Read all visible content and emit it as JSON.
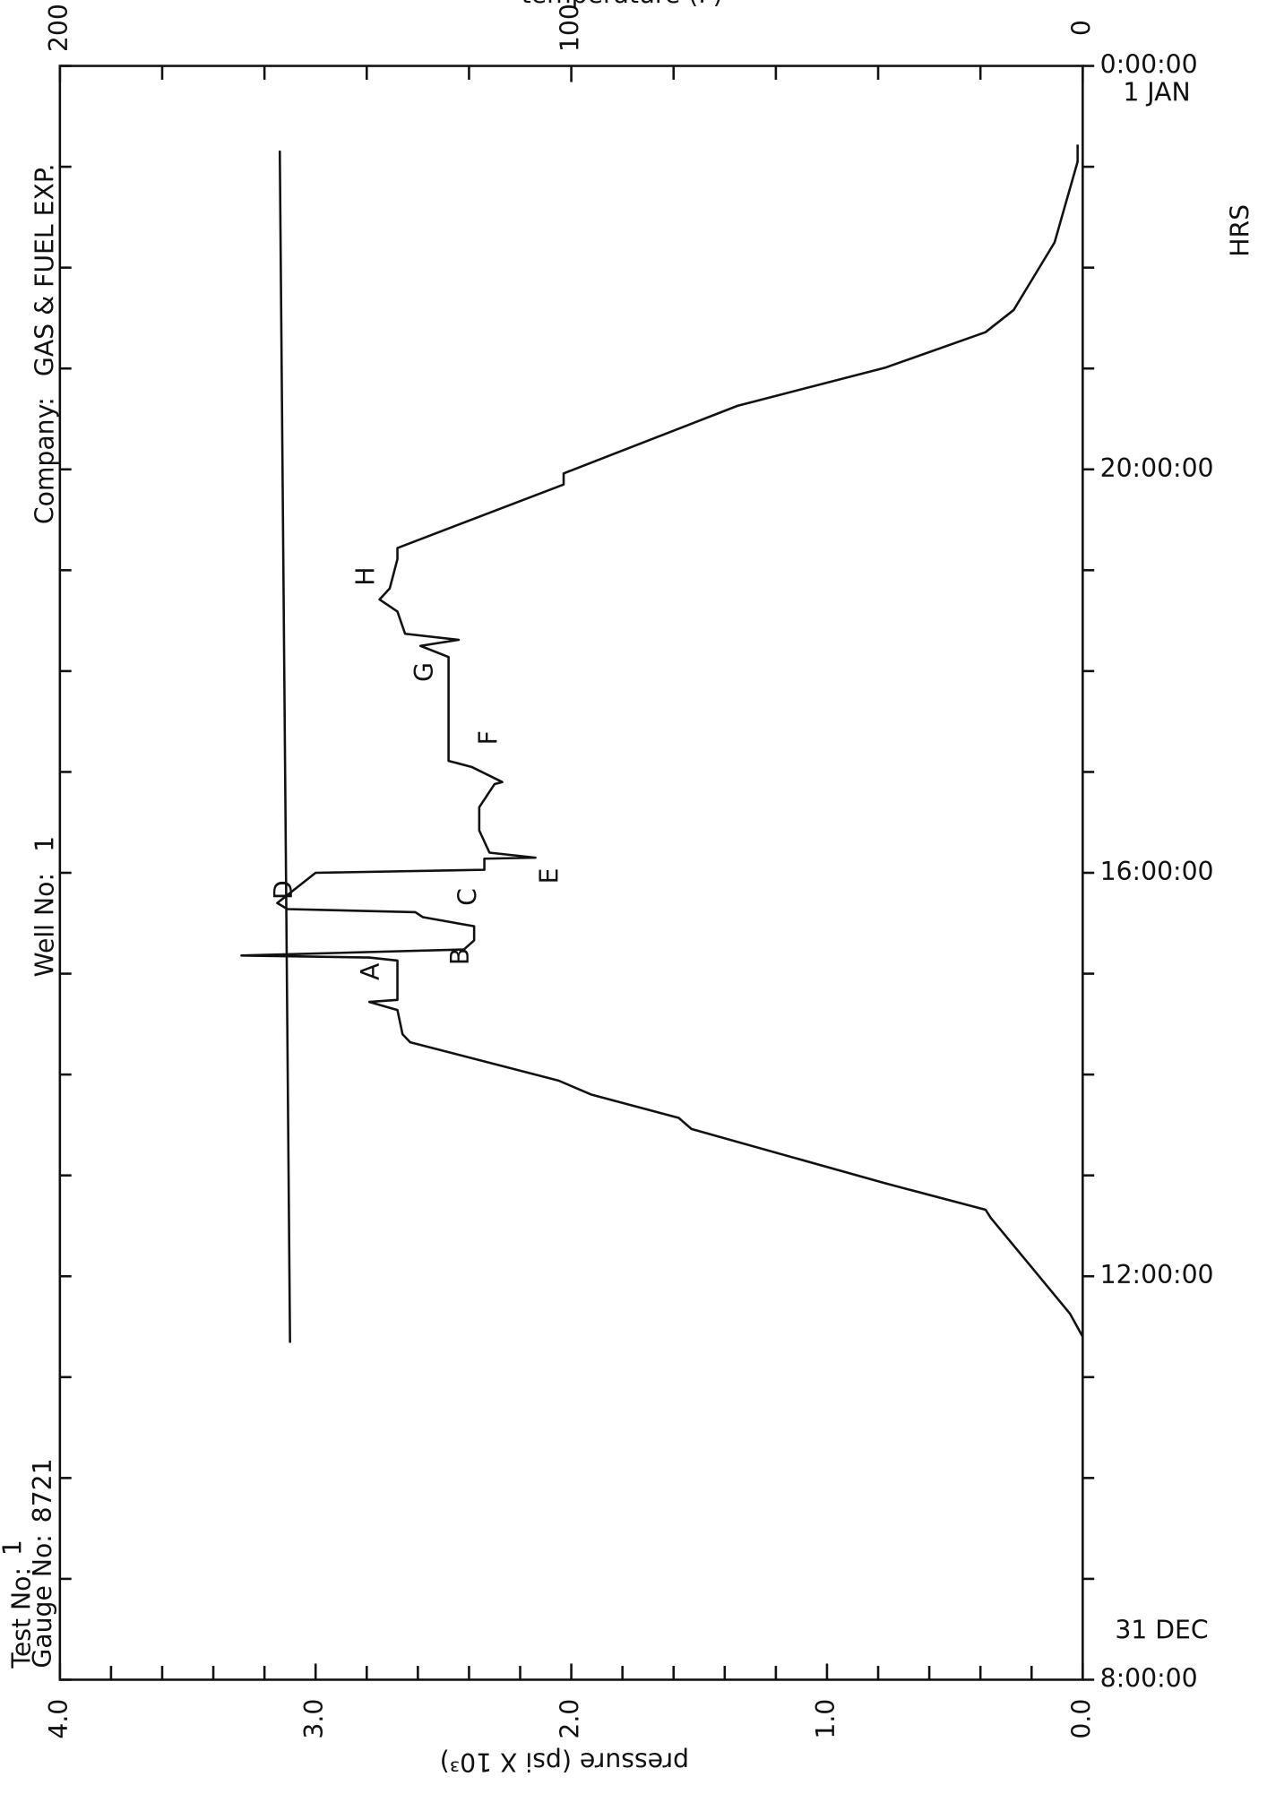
{
  "chart_data": {
    "type": "line",
    "header": {
      "company_label": "Company:",
      "company": "GAS & FUEL EXP.",
      "well_label": "Well No:",
      "well": "1",
      "test_label": "Test No:",
      "test": "1",
      "gauge_label": "Gauge No:",
      "gauge": "8721"
    },
    "x_label": "HRS",
    "y_label": "pressure (psi X 10³)",
    "y2_label": "temperature (F)",
    "xlim": [
      0,
      16
    ],
    "xticks": [
      {
        "value": 0,
        "label": "8:00:00"
      },
      {
        "value": 4,
        "label": "12:00:00"
      },
      {
        "value": 8,
        "label": "16:00:00"
      },
      {
        "value": 12,
        "label": "20:00:00"
      },
      {
        "value": 16,
        "label": "0:00:00"
      }
    ],
    "xminor_ticks": [
      0,
      1,
      2,
      3,
      4,
      5,
      6,
      7,
      8,
      9,
      10,
      11,
      12,
      13,
      14,
      15,
      16
    ],
    "date_labels": [
      {
        "value": 0,
        "label": "31 DEC"
      },
      {
        "value": 16,
        "label": "1 JAN"
      }
    ],
    "ylim": [
      0,
      4
    ],
    "yticks": [
      {
        "value": 4,
        "label": "4.0"
      },
      {
        "value": 3,
        "label": "3.0"
      },
      {
        "value": 2,
        "label": "2.0"
      },
      {
        "value": 1,
        "label": "1.0"
      },
      {
        "value": 0,
        "label": "0.0"
      }
    ],
    "yminor_ticks": [
      0.2,
      0.4,
      0.6,
      0.8,
      1.2,
      1.4,
      1.6,
      1.8,
      2.2,
      2.4,
      2.6,
      2.8,
      3.2,
      3.4,
      3.6,
      3.8
    ],
    "y2lim": [
      0,
      200
    ],
    "y2ticks": [
      200,
      100,
      0
    ],
    "y2minor_ticks": [
      20,
      40,
      60,
      80,
      120,
      140,
      160,
      180
    ],
    "series": [
      {
        "color": "#111111",
        "x": [
          3.4,
          3.63,
          4.58,
          4.66,
          4.92,
          5.46,
          5.57,
          5.8,
          5.94,
          6.32,
          6.4,
          6.64,
          6.72,
          6.74,
          7.13,
          7.16,
          7.18,
          7.24,
          7.33,
          7.47,
          7.56,
          7.61,
          7.64,
          7.7,
          7.82,
          8.0,
          8.03,
          8.14,
          8.15,
          8.2,
          8.42,
          8.65,
          8.88,
          8.9,
          9.05,
          9.11,
          10.14,
          10.25,
          10.31,
          10.37,
          10.59,
          10.71,
          10.82,
          11.11,
          11.22,
          11.85,
          11.96,
          12.63,
          13.01,
          13.36,
          13.58,
          14.25,
          15.05,
          15.22
        ],
        "values": [
          0.0,
          0.05,
          0.36,
          0.38,
          0.77,
          1.53,
          1.58,
          1.92,
          2.05,
          2.63,
          2.66,
          2.68,
          2.79,
          2.68,
          2.68,
          2.79,
          3.29,
          2.42,
          2.38,
          2.38,
          2.58,
          2.61,
          3.11,
          3.15,
          3.09,
          3.0,
          2.34,
          2.34,
          2.14,
          2.32,
          2.36,
          2.36,
          2.3,
          2.27,
          2.39,
          2.48,
          2.48,
          2.59,
          2.44,
          2.65,
          2.68,
          2.75,
          2.71,
          2.68,
          2.68,
          2.03,
          2.03,
          1.35,
          0.77,
          0.38,
          0.27,
          0.11,
          0.02,
          0.02
        ]
      },
      {
        "color": "#111111",
        "axis": "y2",
        "x": [
          3.34,
          15.16
        ],
        "values": [
          155,
          157
        ]
      }
    ],
    "annotations": [
      {
        "text": "A",
        "x": 7.02,
        "y": 2.78
      },
      {
        "text": "B",
        "x": 7.17,
        "y": 2.43
      },
      {
        "text": "C",
        "x": 7.76,
        "y": 2.4
      },
      {
        "text": "D",
        "x": 7.83,
        "y": 3.12
      },
      {
        "text": "E",
        "x": 7.97,
        "y": 2.08
      },
      {
        "text": "F",
        "x": 9.34,
        "y": 2.32
      },
      {
        "text": "G",
        "x": 9.99,
        "y": 2.57
      },
      {
        "text": "H",
        "x": 10.94,
        "y": 2.8
      }
    ]
  }
}
